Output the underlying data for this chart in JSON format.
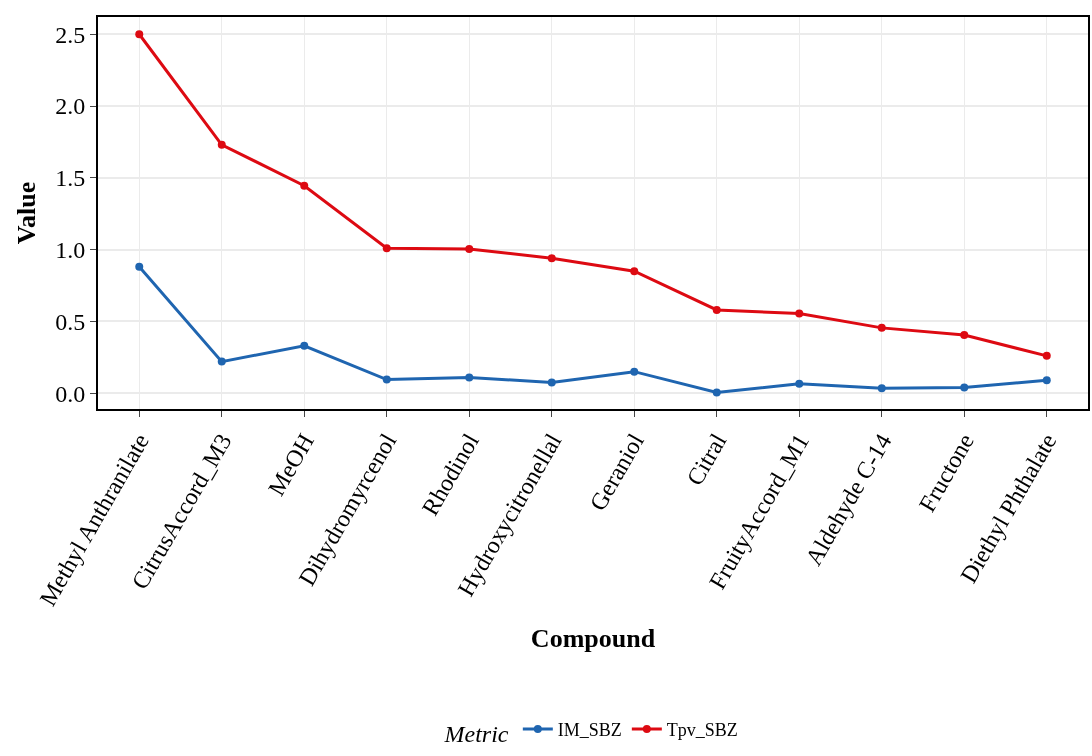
{
  "chart_data": {
    "type": "line",
    "xlabel": "Compound",
    "ylabel": "Value",
    "legend_title": "Metric",
    "categories": [
      "Methyl Anthranilate",
      "CitrusAccord_M3",
      "MeOH",
      "Dihydromyrcenol",
      "Rhodinol",
      "Hydroxycitronellal",
      "Geraniol",
      "Citral",
      "FruityAccord_M1",
      "Aldehyde C-14",
      "Fructone",
      "Diethyl Phthalate"
    ],
    "series": [
      {
        "name": "IM_SBZ",
        "color": "#1f65b0",
        "values": [
          0.88,
          0.22,
          0.33,
          0.095,
          0.11,
          0.075,
          0.15,
          0.005,
          0.065,
          0.035,
          0.04,
          0.09
        ]
      },
      {
        "name": "Tpv_SBZ",
        "color": "#dd0a12",
        "values": [
          2.5,
          1.73,
          1.445,
          1.01,
          1.005,
          0.94,
          0.85,
          0.58,
          0.555,
          0.455,
          0.405,
          0.26
        ]
      }
    ],
    "ylim": [
      -0.11,
      2.62
    ],
    "yticks": [
      {
        "value": 0,
        "label": "0.0"
      },
      0.5,
      {
        "value": 1,
        "label": "1.0"
      },
      1.5,
      {
        "value": 2,
        "label": "2.0"
      },
      2.5
    ],
    "grid": true,
    "legend": "bottom",
    "marker": "circle",
    "line_style": "solid"
  }
}
